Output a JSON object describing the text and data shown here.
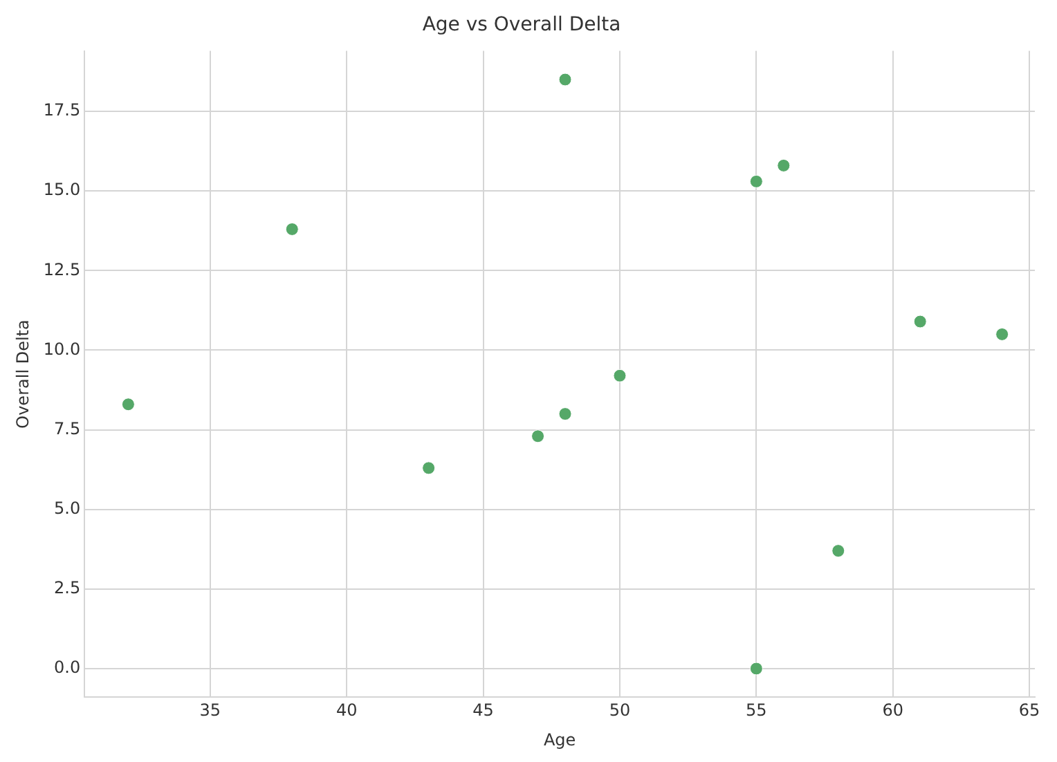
{
  "chart_data": {
    "type": "scatter",
    "title": "Age vs Overall Delta",
    "xlabel": "Age",
    "ylabel": "Overall Delta",
    "x": [
      32,
      38,
      43,
      47,
      48,
      48,
      50,
      55,
      55,
      56,
      58,
      61,
      64
    ],
    "series": [
      {
        "color": "#55a868",
        "values": [
          8.3,
          13.8,
          6.3,
          7.3,
          8.0,
          18.5,
          9.2,
          15.3,
          0.0,
          15.8,
          3.7,
          10.9,
          10.5
        ]
      }
    ],
    "xlim": [
      30.4,
      65.2
    ],
    "xticks": [
      35,
      40,
      45,
      50,
      55,
      60,
      65
    ],
    "ylim": [
      -0.9,
      19.4
    ],
    "yticks": [
      {
        "value": 0,
        "label": "0.0"
      },
      {
        "value": 2.5,
        "label": "2.5"
      },
      {
        "value": 5,
        "label": "5.0"
      },
      {
        "value": 7.5,
        "label": "7.5"
      },
      {
        "value": 10,
        "label": "10.0"
      },
      {
        "value": 12.5,
        "label": "12.5"
      },
      {
        "value": 15,
        "label": "15.0"
      },
      {
        "value": 17.5,
        "label": "17.5"
      }
    ],
    "grid": true,
    "marker": "circle"
  }
}
